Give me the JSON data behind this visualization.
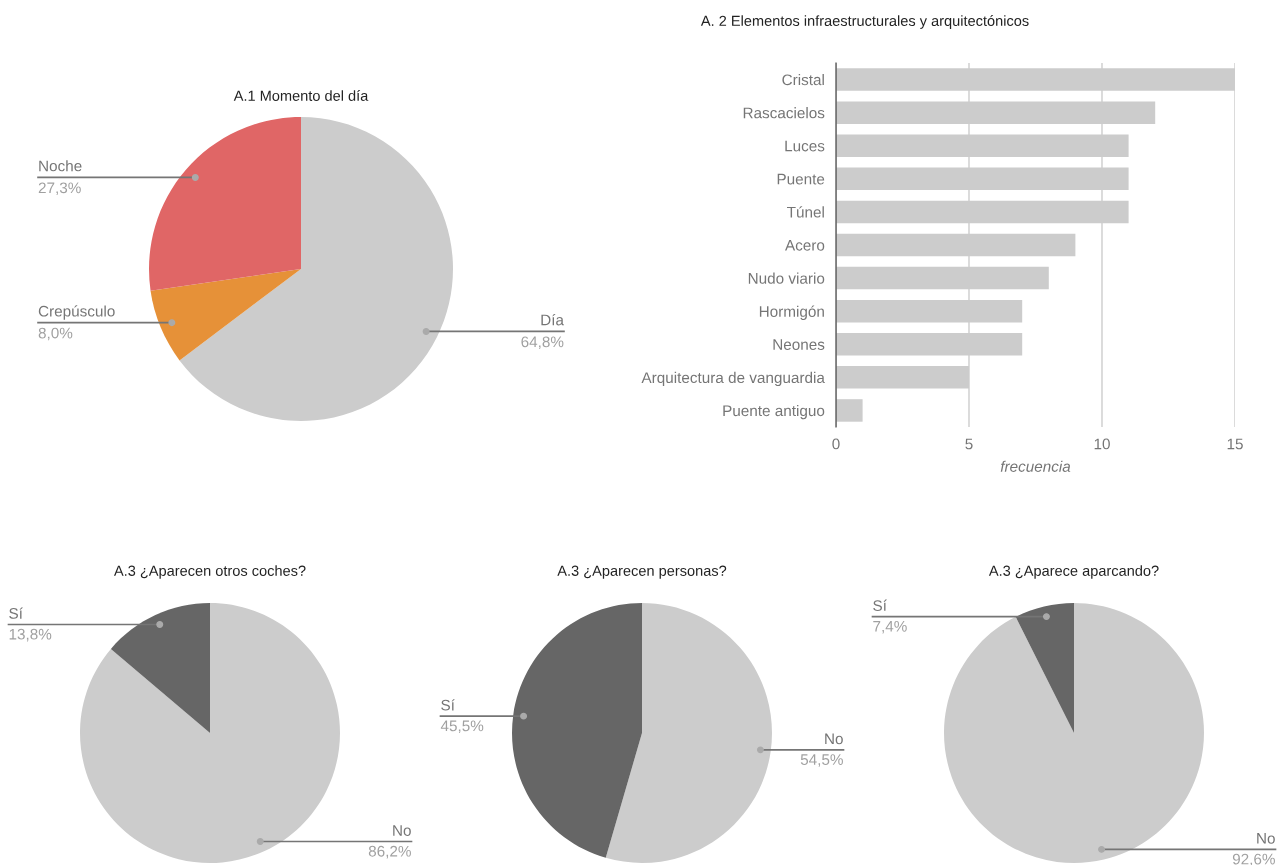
{
  "chart_data": [
    {
      "type": "pie",
      "title": "A.1 Momento del día",
      "categories": [
        "Día",
        "Crepúsculo",
        "Noche"
      ],
      "values": [
        64.8,
        8.0,
        27.3
      ],
      "colors": [
        "#cccccc",
        "#e69138",
        "#e06666"
      ],
      "value_labels": [
        "64,8%",
        "8,0%",
        "27,3%"
      ]
    },
    {
      "type": "bar",
      "title": "A. 2 Elementos infraestructurales y arquitectónicos",
      "orientation": "horizontal",
      "categories": [
        "Cristal",
        "Rascacielos",
        "Luces",
        "Puente",
        "Túnel",
        "Acero",
        "Nudo viario",
        "Hormigón",
        "Neones",
        "Arquitectura de vanguardia",
        "Puente antiguo"
      ],
      "values": [
        15,
        12,
        11,
        11,
        11,
        9,
        8,
        7,
        7,
        5,
        1
      ],
      "color": "#cccccc",
      "xlim": [
        0,
        15
      ],
      "xticks": [
        0,
        5,
        10,
        15
      ],
      "xlabel": "frecuencia",
      "grid": "x"
    },
    {
      "type": "pie",
      "title": "A.3 ¿Aparecen otros coches?",
      "categories": [
        "No",
        "Sí"
      ],
      "values": [
        86.2,
        13.8
      ],
      "colors": [
        "#cccccc",
        "#666666"
      ],
      "value_labels": [
        "86,2%",
        "13,8%"
      ]
    },
    {
      "type": "pie",
      "title": "A.3 ¿Aparecen personas?",
      "categories": [
        "No",
        "Sí"
      ],
      "values": [
        54.5,
        45.5
      ],
      "colors": [
        "#cccccc",
        "#666666"
      ],
      "value_labels": [
        "54,5%",
        "45,5%"
      ]
    },
    {
      "type": "pie",
      "title": "A.3 ¿Aparece aparcando?",
      "categories": [
        "No",
        "Sí"
      ],
      "values": [
        92.6,
        7.4
      ],
      "colors": [
        "#cccccc",
        "#666666"
      ],
      "value_labels": [
        "92,6%",
        "7,4%"
      ]
    }
  ]
}
